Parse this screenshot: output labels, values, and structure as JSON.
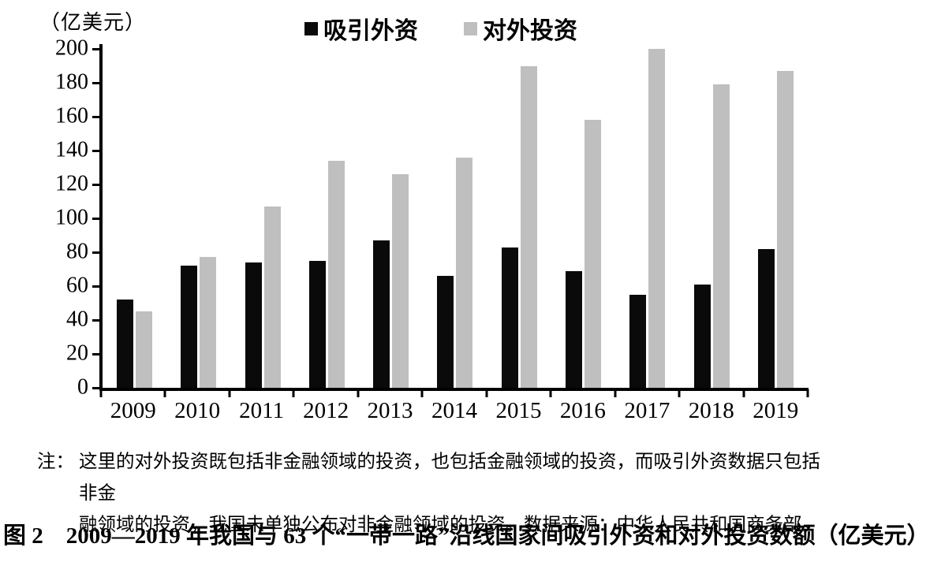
{
  "figure": {
    "unit_label": "（亿美元）",
    "note": {
      "label": "注：",
      "line1": "这里的对外投资既包括非金融领域的投资，也包括金融领域的投资，而吸引外资数据只包括非金",
      "line2": "融领域的投资，我国未单独公布对非金融领域的投资。数据来源：中华人民共和国商务部。"
    },
    "caption": "图 2　2009—2019 年我国与 63 个“一带一路”沿线国家间吸引外资和对外投资数额（亿美元）"
  },
  "chart_data": {
    "type": "bar",
    "title": "图 2　2009—2019 年我国与 63 个“一带一路”沿线国家间吸引外资和对外投资数额（亿美元）",
    "xlabel": "",
    "ylabel": "（亿美元）",
    "categories": [
      "2009",
      "2010",
      "2011",
      "2012",
      "2013",
      "2014",
      "2015",
      "2016",
      "2017",
      "2018",
      "2019"
    ],
    "series": [
      {
        "id": "attract-foreign-investment",
        "name": "吸引外资",
        "color": "#0a0a0a",
        "values": [
          52,
          72,
          74,
          75,
          87,
          66,
          83,
          69,
          55,
          61,
          82
        ]
      },
      {
        "id": "outward-investment",
        "name": "对外投资",
        "color": "#bfbfbf",
        "values": [
          45,
          77,
          107,
          134,
          126,
          136,
          190,
          158,
          200,
          179,
          187
        ]
      }
    ],
    "ylim": [
      0,
      200
    ],
    "ytick_step": 20,
    "grid": false,
    "legend_position": "top"
  }
}
